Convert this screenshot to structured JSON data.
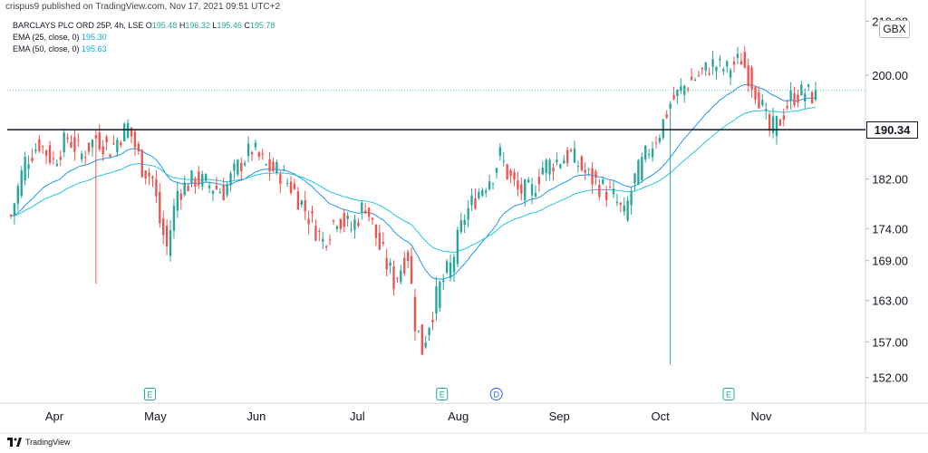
{
  "header": {
    "publish_line": "crispus9 published on TradingView.com, Nov 17, 2021 09:51 UTC+2"
  },
  "legend": {
    "symbol": "BARCLAYS PLC ORD 25P, 4h, LSE",
    "ohlc": [
      {
        "label": "O",
        "value": "195.48"
      },
      {
        "label": "H",
        "value": "196.32"
      },
      {
        "label": "L",
        "value": "195.46"
      },
      {
        "label": "C",
        "value": "195.78"
      }
    ],
    "ema25_label": "EMA (25, close, 0)",
    "ema25_value": "195.30",
    "ema50_label": "EMA (50, close, 0)",
    "ema50_value": "195.63"
  },
  "currency_badge": "GBX",
  "horizontal_line_label": "190.34",
  "footer": {
    "brand": "TradingView"
  },
  "colors": {
    "up": "#26a69a",
    "down": "#ef5350",
    "ema25": "#2196f3",
    "ema50": "#26c6da",
    "level_line": "#131722"
  },
  "chart_data": {
    "type": "candlestick",
    "title": "BARCLAYS PLC ORD 25P, 4h, LSE",
    "y_axis": {
      "ticks": [
        152.0,
        157.0,
        163.0,
        169.0,
        174.0,
        182.0,
        190.34,
        200.0,
        210.0
      ],
      "tick_labels": [
        "152.00",
        "157.00",
        "163.00",
        "169.00",
        "174.00",
        "182.00",
        "190.34",
        "200.00",
        "210.00"
      ],
      "scale": "log",
      "ylim": [
        148.5,
        212.0
      ],
      "position": "right"
    },
    "x_axis": {
      "months": [
        "Apr",
        "May",
        "Jun",
        "Jul",
        "Aug",
        "Sep",
        "Oct",
        "Nov"
      ]
    },
    "horizontal_line": 190.34,
    "event_markers": [
      {
        "label": "E",
        "near": "May"
      },
      {
        "label": "E",
        "near": "Aug"
      },
      {
        "label": "D",
        "near": "Aug"
      },
      {
        "label": "E",
        "near": "Nov"
      }
    ],
    "price_path": [
      [
        0,
        176
      ],
      [
        4,
        185
      ],
      [
        8,
        188
      ],
      [
        12,
        185
      ],
      [
        16,
        189
      ],
      [
        20,
        186
      ],
      [
        24,
        189
      ],
      [
        28,
        187
      ],
      [
        33,
        191
      ],
      [
        37,
        184
      ],
      [
        40,
        182
      ],
      [
        42,
        175
      ],
      [
        44,
        171
      ],
      [
        47,
        180
      ],
      [
        52,
        182
      ],
      [
        56,
        181
      ],
      [
        60,
        180
      ],
      [
        64,
        184
      ],
      [
        68,
        187
      ],
      [
        72,
        184
      ],
      [
        76,
        183
      ],
      [
        80,
        180
      ],
      [
        84,
        176
      ],
      [
        88,
        172
      ],
      [
        92,
        176
      ],
      [
        96,
        174
      ],
      [
        100,
        178
      ],
      [
        104,
        171
      ],
      [
        108,
        166
      ],
      [
        112,
        170
      ],
      [
        114,
        160
      ],
      [
        116,
        156
      ],
      [
        118,
        160
      ],
      [
        121,
        165
      ],
      [
        124,
        168
      ],
      [
        128,
        176
      ],
      [
        132,
        180
      ],
      [
        136,
        183
      ],
      [
        138,
        186
      ],
      [
        140,
        183
      ],
      [
        143,
        180
      ],
      [
        147,
        180
      ],
      [
        150,
        184
      ],
      [
        154,
        185
      ],
      [
        158,
        186
      ],
      [
        162,
        183
      ],
      [
        166,
        181
      ],
      [
        170,
        179
      ],
      [
        173,
        176
      ],
      [
        176,
        182
      ],
      [
        180,
        187
      ],
      [
        183,
        190
      ],
      [
        186,
        195
      ],
      [
        190,
        198
      ],
      [
        194,
        200
      ],
      [
        198,
        202
      ],
      [
        202,
        201
      ],
      [
        206,
        203
      ],
      [
        208,
        200
      ],
      [
        211,
        196
      ],
      [
        214,
        190
      ],
      [
        217,
        192
      ],
      [
        220,
        196
      ],
      [
        224,
        197
      ],
      [
        227,
        196
      ]
    ],
    "wicks": [
      {
        "i": 24,
        "low": 165.5
      },
      {
        "i": 186,
        "low": 153.8
      }
    ],
    "ema_series": [
      {
        "name": "EMA (25, close, 0)",
        "period": 25
      },
      {
        "name": "EMA (50, close, 0)",
        "period": 50
      }
    ],
    "grid": true
  }
}
